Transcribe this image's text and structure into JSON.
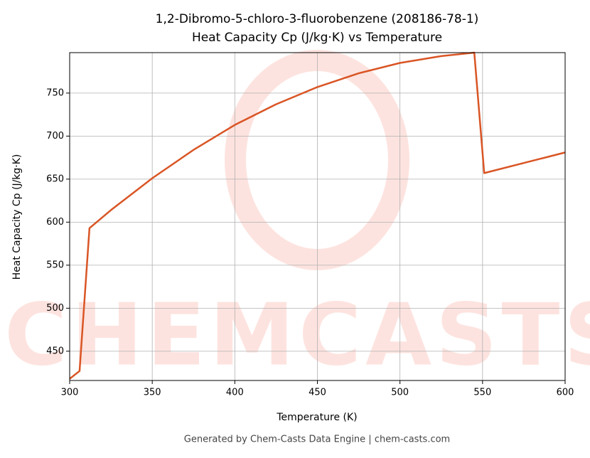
{
  "chart_data": {
    "type": "line",
    "title": "1,2-Dibromo-5-chloro-3-fluorobenzene (208186-78-1)",
    "subtitle": "Heat Capacity Cp (J/kg·K) vs Temperature",
    "x_label": "Temperature (K)",
    "y_label": "Heat Capacity Cp (J/kg·K)",
    "footer": "Generated by Chem-Casts Data Engine | chem-casts.com",
    "watermark": "CHEMCASTS",
    "x": [
      300,
      306,
      312,
      325,
      350,
      375,
      400,
      425,
      450,
      475,
      500,
      525,
      545,
      551,
      600
    ],
    "series": [
      {
        "name": "Cp",
        "color": "#d95525",
        "values": [
          418,
          427,
          593,
          614,
          651,
          684,
          713,
          737,
          757,
          773,
          785,
          793,
          797,
          657,
          681
        ]
      }
    ],
    "xlim": [
      300,
      600
    ],
    "ylim": [
      416,
      797
    ],
    "xticks": [
      300,
      350,
      400,
      450,
      500,
      550,
      600
    ],
    "yticks": [
      450,
      500,
      550,
      600,
      650,
      700,
      750
    ],
    "grid": true
  }
}
